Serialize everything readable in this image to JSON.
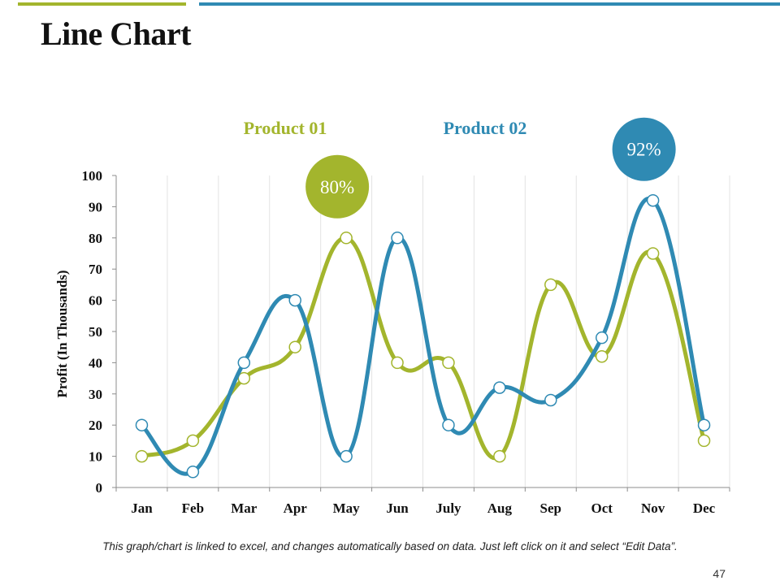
{
  "slide": {
    "title": "Line Chart",
    "footnote": "This graph/chart is linked to excel, and changes automatically based on data. Just left click on it and select “Edit Data”.",
    "page_number": "47"
  },
  "colors": {
    "product_01": "#a3b52d",
    "product_02": "#2f8ab3",
    "accent_bar_left": "#a3b52d",
    "accent_bar_right": "#2f8ab3"
  },
  "chart_data": {
    "type": "line",
    "title": "",
    "xlabel": "",
    "ylabel": "Profit (In Thousands)",
    "categories": [
      "Jan",
      "Feb",
      "Mar",
      "Apr",
      "May",
      "Jun",
      "July",
      "Aug",
      "Sep",
      "Oct",
      "Nov",
      "Dec"
    ],
    "ylim": [
      0,
      100
    ],
    "yticks": [
      0,
      10,
      20,
      30,
      40,
      50,
      60,
      70,
      80,
      90,
      100
    ],
    "grid": "vertical",
    "smooth": true,
    "legend": "top-center",
    "series": [
      {
        "name": "Product 01",
        "color": "#a3b52d",
        "values": [
          10,
          15,
          35,
          45,
          80,
          40,
          40,
          10,
          65,
          42,
          75,
          15
        ]
      },
      {
        "name": "Product 02",
        "color": "#2f8ab3",
        "values": [
          20,
          5,
          40,
          60,
          10,
          80,
          20,
          32,
          28,
          48,
          92,
          20
        ]
      }
    ],
    "annotations": [
      {
        "series": "Product 01",
        "category": "May",
        "value": 80,
        "text": "80%"
      },
      {
        "series": "Product 02",
        "category": "Nov",
        "value": 92,
        "text": "92%"
      }
    ]
  }
}
